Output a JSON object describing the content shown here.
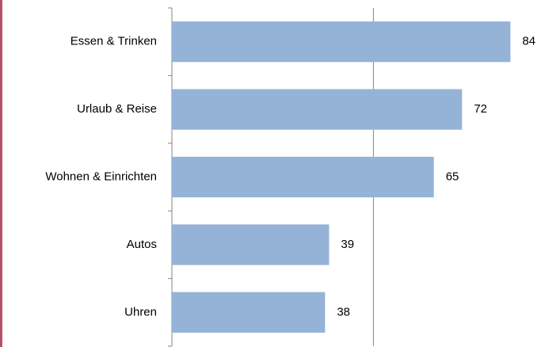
{
  "chart_data": {
    "type": "barh",
    "categories": [
      "Essen & Trinken",
      "Urlaub & Reise",
      "Wohnen & Einrichten",
      "Autos",
      "Uhren"
    ],
    "values": [
      84,
      72,
      65,
      39,
      38
    ],
    "color": "#95b3d7",
    "xlim": [
      0,
      91
    ],
    "xticks": [
      0,
      50
    ],
    "grid": true
  }
}
